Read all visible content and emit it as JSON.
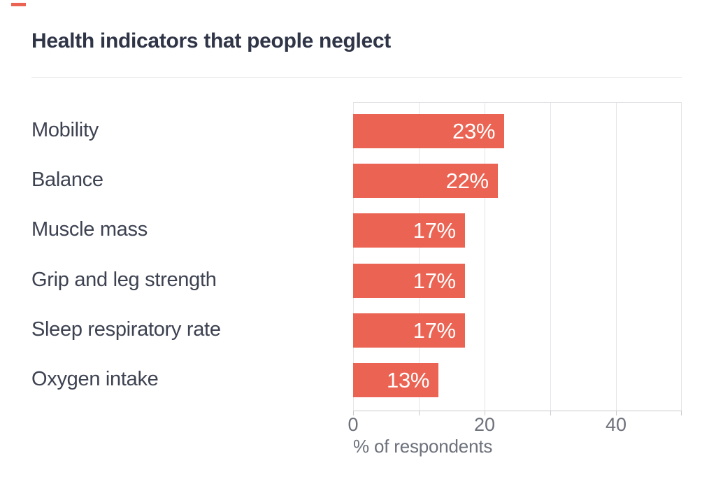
{
  "chart_data": {
    "type": "bar",
    "orientation": "horizontal",
    "title": "Health indicators that people neglect",
    "categories": [
      "Mobility",
      "Balance",
      "Muscle mass",
      "Grip and leg strength",
      "Sleep respiratory rate",
      "Oxygen intake"
    ],
    "values": [
      23,
      22,
      17,
      17,
      17,
      13
    ],
    "value_labels": [
      "23%",
      "22%",
      "17%",
      "17%",
      "17%",
      "13%"
    ],
    "xlabel": "% of respondents",
    "xlim": [
      0,
      50
    ],
    "x_gridlines": [
      0,
      10,
      20,
      30,
      40,
      50
    ],
    "x_tick_labels": [
      {
        "value": 0,
        "label": "0"
      },
      {
        "value": 20,
        "label": "20"
      },
      {
        "value": 40,
        "label": "40"
      }
    ],
    "grid": "vertical",
    "legend": "none"
  },
  "colors": {
    "bar": "#eb6352",
    "accent_dash": "#eb6352",
    "value_label": "#ffffff",
    "title_text": "#2f3547",
    "category_text": "#3d4251",
    "axis_text": "#6d717b",
    "gridline": "#e5e5e8",
    "axis_line": "#c9cacd"
  }
}
